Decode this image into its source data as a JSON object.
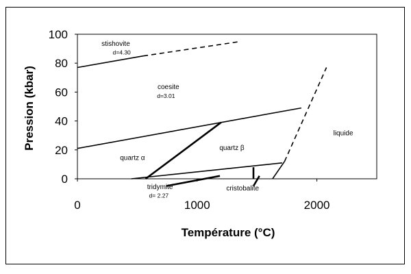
{
  "chart_data": {
    "type": "line",
    "title": "",
    "xlabel": "Température (°C)",
    "ylabel": "Pression (kbar)",
    "xlim": [
      0,
      2500
    ],
    "ylim": [
      0,
      100
    ],
    "x_ticks": [
      "0",
      "1000",
      "2000"
    ],
    "x_tick_values": [
      0,
      1000,
      2000
    ],
    "y_ticks": [
      "0",
      "20",
      "40",
      "60",
      "80",
      "100"
    ],
    "y_tick_values": [
      0,
      20,
      40,
      60,
      80,
      100
    ],
    "grid": false,
    "series": [
      {
        "x": [
          0,
          550
        ],
        "y": [
          77,
          85
        ],
        "style": "solid",
        "weight": "normal"
      },
      {
        "x": [
          550,
          1360
        ],
        "y": [
          85,
          95
        ],
        "style": "dashed",
        "weight": "normal"
      },
      {
        "x": [
          0,
          1870
        ],
        "y": [
          21,
          49
        ],
        "style": "solid",
        "weight": "normal"
      },
      {
        "x": [
          570,
          1200
        ],
        "y": [
          0,
          39
        ],
        "style": "solid",
        "weight": "bold"
      },
      {
        "x": [
          450,
          1710
        ],
        "y": [
          0,
          11
        ],
        "style": "solid",
        "weight": "normal"
      },
      {
        "x": [
          1470,
          1470
        ],
        "y": [
          0,
          8
        ],
        "style": "solid",
        "weight": "bold"
      },
      {
        "x": [
          740,
          1190
        ],
        "y": [
          -5,
          2
        ],
        "style": "solid",
        "weight": "bold"
      },
      {
        "x": [
          1470,
          1520
        ],
        "y": [
          -5,
          2
        ],
        "style": "solid",
        "weight": "bold"
      },
      {
        "x": [
          1630,
          1730
        ],
        "y": [
          0,
          12
        ],
        "style": "solid",
        "weight": "normal"
      },
      {
        "x": [
          1730,
          2080
        ],
        "y": [
          12,
          77
        ],
        "style": "dashed",
        "weight": "normal"
      }
    ],
    "regions": [
      {
        "name": "stishovite",
        "label": "stishovite",
        "density": "d=4.30",
        "x": 320,
        "y": 92,
        "dx": 370,
        "dy": 86
      },
      {
        "name": "coesite",
        "label": "coesite",
        "density": "d=3.01",
        "x": 760,
        "y": 62,
        "dx": 740,
        "dy": 56
      },
      {
        "name": "quartz-alpha",
        "label": "quartz α",
        "x": 460,
        "y": 13
      },
      {
        "name": "quartz-beta",
        "label": "quartz β",
        "x": 1290,
        "y": 20
      },
      {
        "name": "liquide",
        "label": "liquide",
        "x": 2220,
        "y": 30
      },
      {
        "name": "tridymite",
        "label": "tridymite",
        "density": "d= 2.27",
        "x": 690,
        "y": -7,
        "dx": 680,
        "dy": -13
      },
      {
        "name": "cristobalite",
        "label": "cristobalite",
        "x": 1380,
        "y": -8
      }
    ]
  }
}
